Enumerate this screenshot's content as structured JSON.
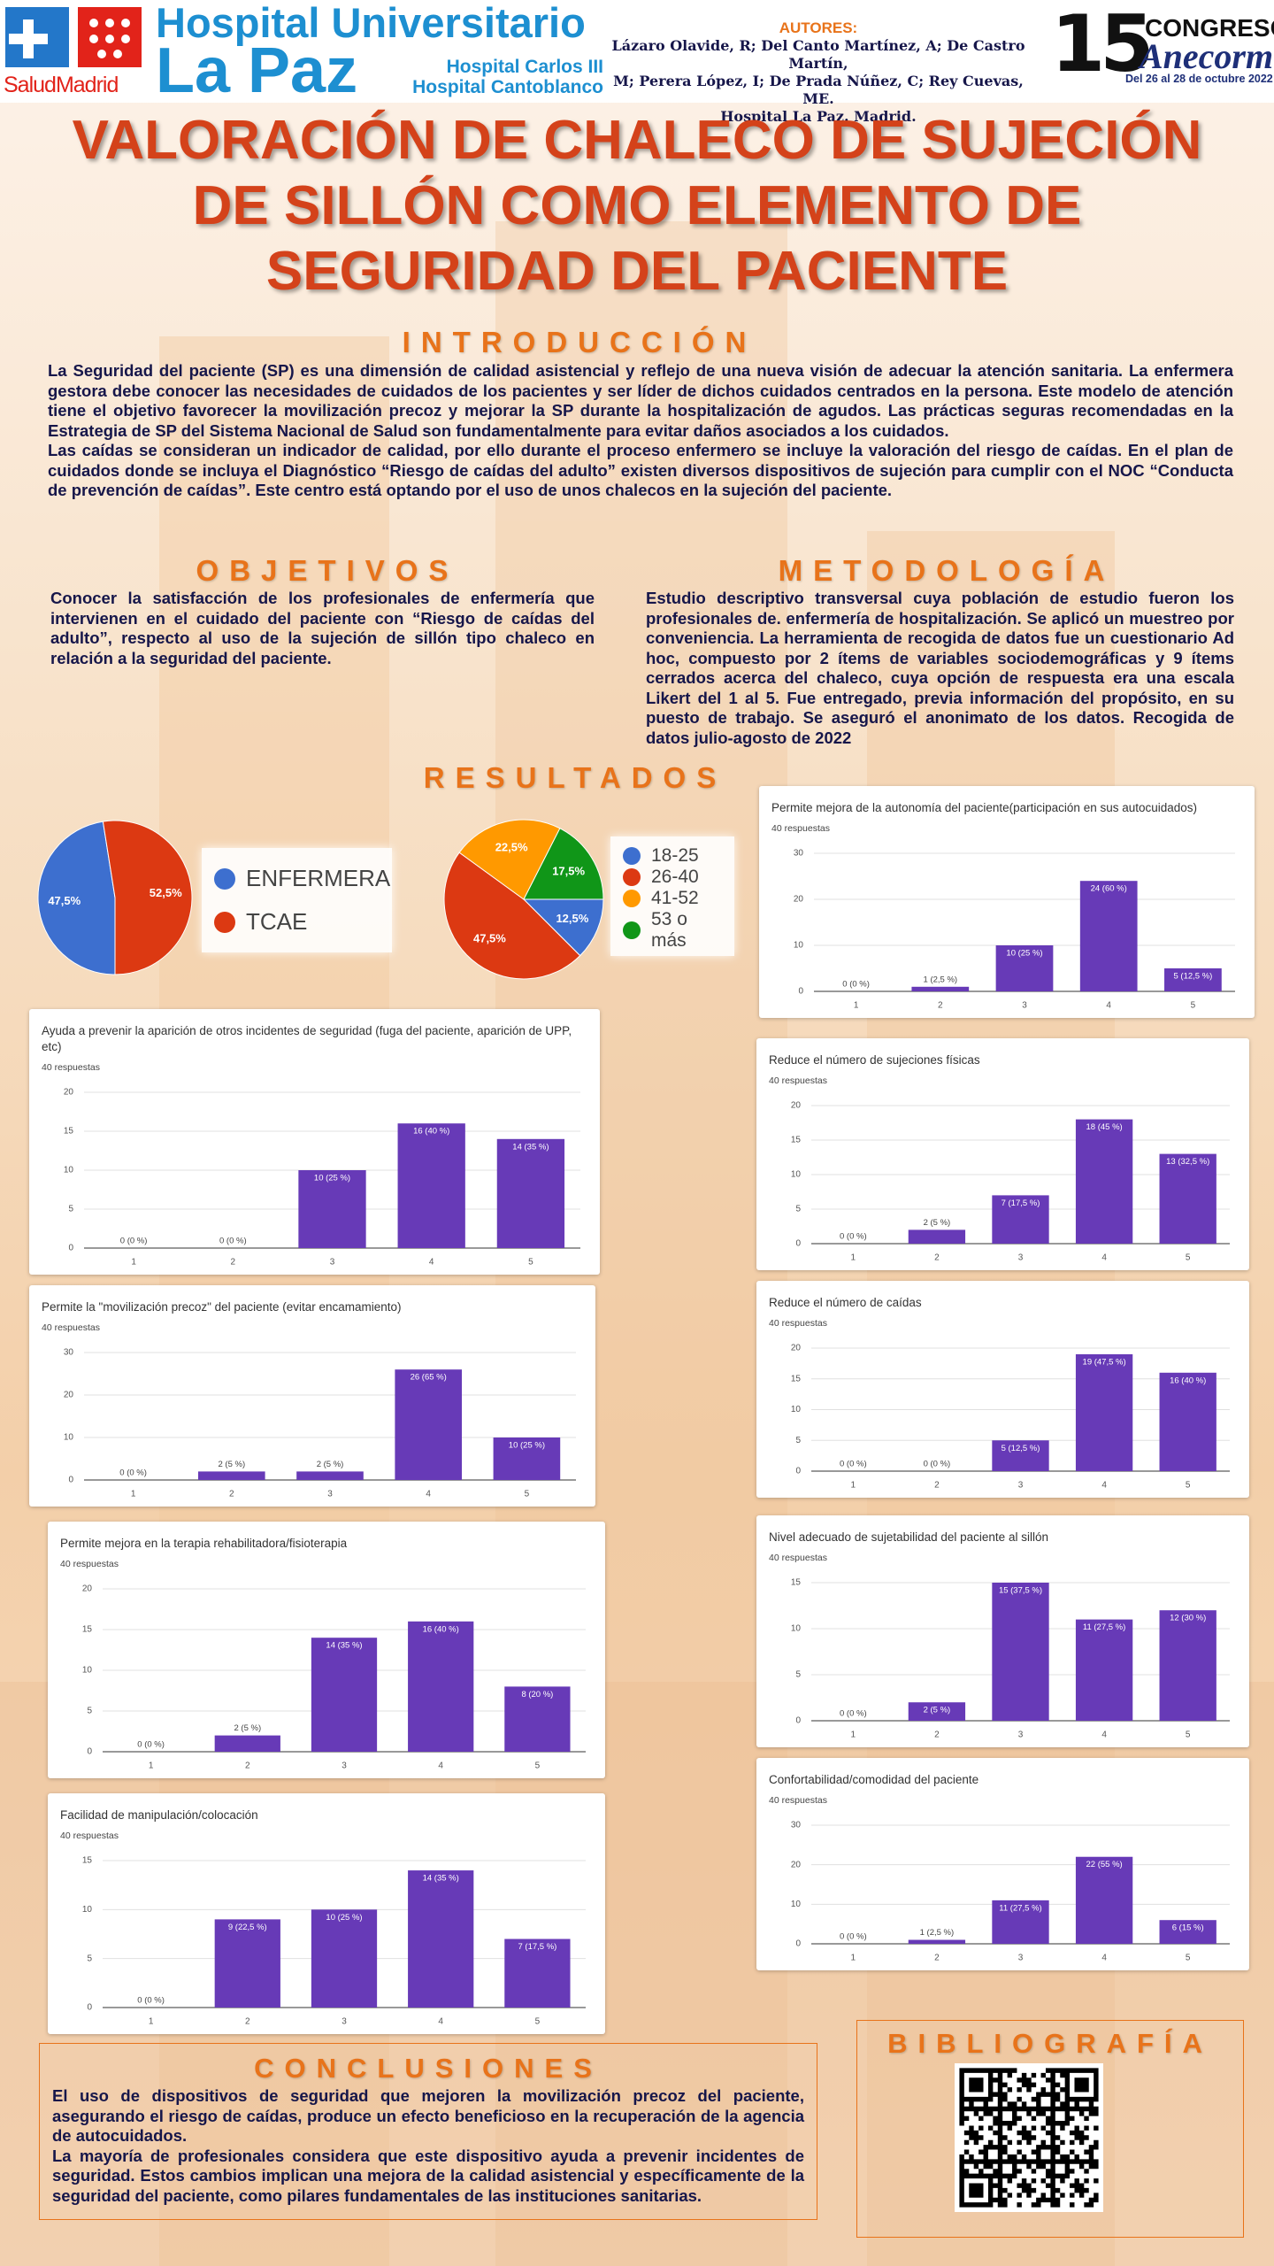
{
  "header": {
    "logo_text": "SaludMadrid",
    "hospital_line1": "Hospital Universitario",
    "hospital_line2": "La Paz",
    "hospital_line3": "Hospital Carlos III",
    "hospital_line4": "Hospital Cantoblanco",
    "authors_label": "AUTORES:",
    "authors_lines": [
      "Lázaro Olavide, R; Del Canto Martínez, A; De Castro Martín,",
      "M; Perera López, I; De Prada Núñez, C; Rey Cuevas, ME.",
      "Hospital La Paz. Madrid."
    ],
    "congress_number": "15",
    "congress_word": "CONGRESO",
    "congress_name": "Anecorm",
    "congress_dates": "Del 26 al 28 de octubre 2022"
  },
  "title_lines": [
    "VALORACIÓN DE CHALECO DE SUJECIÓN",
    "DE SILLÓN COMO ELEMENTO DE",
    "SEGURIDAD DEL PACIENTE"
  ],
  "introduction": {
    "heading": "INTRODUCCIÓN",
    "paragraphs": [
      "La Seguridad del paciente (SP) es una dimensión de calidad asistencial y reflejo de una nueva visión de adecuar la atención sanitaria. La enfermera gestora debe conocer las necesidades de cuidados de los pacientes y ser líder de dichos cuidados centrados en la persona. Este modelo de atención tiene el objetivo favorecer la movilización precoz y mejorar la SP durante la hospitalización de agudos. Las prácticas seguras recomendadas en la Estrategia de SP del Sistema Nacional de Salud son fundamentalmente para evitar daños asociados a los cuidados.",
      "Las caídas se consideran un indicador de calidad, por ello durante el proceso enfermero se incluye la valoración del riesgo de caídas. En el plan de cuidados donde se incluya el Diagnóstico “Riesgo de caídas del adulto” existen diversos dispositivos de sujeción para cumplir con el NOC “Conducta de prevención de caídas”. Este centro está optando por el uso de unos chalecos en la sujeción del paciente."
    ]
  },
  "objectives": {
    "heading": "OBJETIVOS",
    "text": "Conocer la satisfacción de los profesionales de enfermería que intervienen en el cuidado del paciente con “Riesgo de caídas del adulto”, respecto al uso de la sujeción de sillón tipo chaleco en relación a la seguridad del paciente."
  },
  "methodology": {
    "heading": "METODOLOGÍA",
    "text": "Estudio descriptivo transversal cuya población de estudio fueron los profesionales de. enfermería de hospitalización. Se aplicó un muestreo por conveniencia. La herramienta de recogida de datos fue un cuestionario Ad hoc, compuesto por 2 ítems de variables sociodemográficas y 9 ítems cerrados acerca del chaleco, cuya opción de respuesta era una escala Likert del 1 al 5. Fue entregado, previa información del propósito, en su puesto de trabajo.  Se aseguró el anonimato de los datos. Recogida de datos julio-agosto de 2022"
  },
  "results_heading": "RESULTADOS",
  "chart_data": [
    {
      "type": "pie",
      "categories": [
        "ENFERMERA",
        "TCAE"
      ],
      "values": [
        47.5,
        52.5
      ],
      "value_labels": [
        "47,5%",
        "52,5%"
      ],
      "colors": [
        "#3d6fcf",
        "#dc3912"
      ]
    },
    {
      "type": "pie",
      "categories": [
        "18-25",
        "26-40",
        "41-52",
        "53 o más"
      ],
      "values": [
        12.5,
        47.5,
        22.5,
        17.5
      ],
      "value_labels": [
        "12,5%",
        "47,5%",
        "22,5%",
        "17,5%"
      ],
      "colors": [
        "#3d6fcf",
        "#dc3912",
        "#ff9900",
        "#109618"
      ]
    },
    {
      "type": "bar",
      "title": "Permite mejora de la autonomía del paciente(participación en sus autocuidados)",
      "subtitle": "40 respuestas",
      "categories": [
        "1",
        "2",
        "3",
        "4",
        "5"
      ],
      "values": [
        0,
        1,
        10,
        24,
        5
      ],
      "value_labels": [
        "0 (0 %)",
        "1 (2,5 %)",
        "10 (25 %)",
        "24 (60 %)",
        "5 (12,5 %)"
      ],
      "color": "#673ab7",
      "ylim": [
        0,
        30
      ],
      "yticks": [
        0,
        10,
        20,
        30
      ],
      "grid": true
    },
    {
      "type": "bar",
      "title": "Ayuda a prevenir la aparición de otros incidentes de seguridad (fuga del paciente, aparición de UPP, etc)",
      "subtitle": "40 respuestas",
      "categories": [
        "1",
        "2",
        "3",
        "4",
        "5"
      ],
      "values": [
        0,
        0,
        10,
        16,
        14
      ],
      "value_labels": [
        "0 (0 %)",
        "0 (0 %)",
        "10 (25 %)",
        "16 (40 %)",
        "14 (35 %)"
      ],
      "color": "#673ab7",
      "ylim": [
        0,
        20
      ],
      "yticks": [
        0,
        5,
        10,
        15,
        20
      ],
      "grid": true
    },
    {
      "type": "bar",
      "title": "Reduce el número de sujeciones físicas",
      "subtitle": "40 respuestas",
      "categories": [
        "1",
        "2",
        "3",
        "4",
        "5"
      ],
      "values": [
        0,
        2,
        7,
        18,
        13
      ],
      "value_labels": [
        "0 (0 %)",
        "2 (5 %)",
        "7 (17,5 %)",
        "18 (45 %)",
        "13 (32,5 %)"
      ],
      "color": "#673ab7",
      "ylim": [
        0,
        20
      ],
      "yticks": [
        0,
        5,
        10,
        15,
        20
      ],
      "grid": true
    },
    {
      "type": "bar",
      "title": "Permite la \"movilización precoz\" del paciente (evitar encamamiento)",
      "subtitle": "40 respuestas",
      "categories": [
        "1",
        "2",
        "3",
        "4",
        "5"
      ],
      "values": [
        0,
        2,
        2,
        26,
        10
      ],
      "value_labels": [
        "0 (0 %)",
        "2 (5 %)",
        "2 (5 %)",
        "26 (65 %)",
        "10 (25 %)"
      ],
      "color": "#673ab7",
      "ylim": [
        0,
        30
      ],
      "yticks": [
        0,
        10,
        20,
        30
      ],
      "grid": true
    },
    {
      "type": "bar",
      "title": "Reduce el número de caídas",
      "subtitle": "40 respuestas",
      "categories": [
        "1",
        "2",
        "3",
        "4",
        "5"
      ],
      "values": [
        0,
        0,
        5,
        19,
        16
      ],
      "value_labels": [
        "0 (0 %)",
        "0 (0 %)",
        "5 (12,5 %)",
        "19 (47,5 %)",
        "16 (40 %)"
      ],
      "color": "#673ab7",
      "ylim": [
        0,
        20
      ],
      "yticks": [
        0,
        5,
        10,
        15,
        20
      ],
      "grid": true
    },
    {
      "type": "bar",
      "title": "Permite mejora en la terapia rehabilitadora/fisioterapia",
      "subtitle": "40 respuestas",
      "categories": [
        "1",
        "2",
        "3",
        "4",
        "5"
      ],
      "values": [
        0,
        2,
        14,
        16,
        8
      ],
      "value_labels": [
        "0 (0 %)",
        "2 (5 %)",
        "14 (35 %)",
        "16 (40 %)",
        "8 (20 %)"
      ],
      "color": "#673ab7",
      "ylim": [
        0,
        20
      ],
      "yticks": [
        0,
        5,
        10,
        15,
        20
      ],
      "grid": true
    },
    {
      "type": "bar",
      "title": "Nivel adecuado de sujetabilidad del paciente al sillón",
      "subtitle": "40 respuestas",
      "categories": [
        "1",
        "2",
        "3",
        "4",
        "5"
      ],
      "values": [
        0,
        2,
        15,
        11,
        12
      ],
      "value_labels": [
        "0 (0 %)",
        "2 (5 %)",
        "15 (37,5 %)",
        "11 (27,5 %)",
        "12 (30 %)"
      ],
      "color": "#673ab7",
      "ylim": [
        0,
        15
      ],
      "yticks": [
        0,
        5,
        10,
        15
      ],
      "grid": true
    },
    {
      "type": "bar",
      "title": "Facilidad de manipulación/colocación",
      "subtitle": "40 respuestas",
      "categories": [
        "1",
        "2",
        "3",
        "4",
        "5"
      ],
      "values": [
        0,
        9,
        10,
        14,
        7
      ],
      "value_labels": [
        "0 (0 %)",
        "9 (22,5 %)",
        "10 (25 %)",
        "14 (35 %)",
        "7 (17,5 %)"
      ],
      "color": "#673ab7",
      "ylim": [
        0,
        15
      ],
      "yticks": [
        0,
        5,
        10,
        15
      ],
      "grid": true
    },
    {
      "type": "bar",
      "title": "Confortabilidad/comodidad del paciente",
      "subtitle": "40 respuestas",
      "categories": [
        "1",
        "2",
        "3",
        "4",
        "5"
      ],
      "values": [
        0,
        1,
        11,
        22,
        6
      ],
      "value_labels": [
        "0 (0 %)",
        "1 (2,5 %)",
        "11 (27,5 %)",
        "22 (55 %)",
        "6 (15 %)"
      ],
      "color": "#673ab7",
      "ylim": [
        0,
        30
      ],
      "yticks": [
        0,
        10,
        20,
        30
      ],
      "grid": true
    }
  ],
  "conclusions": {
    "heading": "CONCLUSIONES",
    "paragraphs": [
      "El uso de dispositivos de seguridad que mejoren la movilización precoz del paciente, asegurando el riesgo de caídas, produce un efecto beneficioso en la recuperación de la agencia de autocuidados.",
      "La mayoría de profesionales considera que este dispositivo ayuda a prevenir incidentes de seguridad. Estos cambios implican una mejora de la calidad asistencial y específicamente de la seguridad del paciente, como pilares fundamentales de las instituciones sanitarias."
    ]
  },
  "bibliography": {
    "heading": "BIBLIOGRAFÍA"
  }
}
